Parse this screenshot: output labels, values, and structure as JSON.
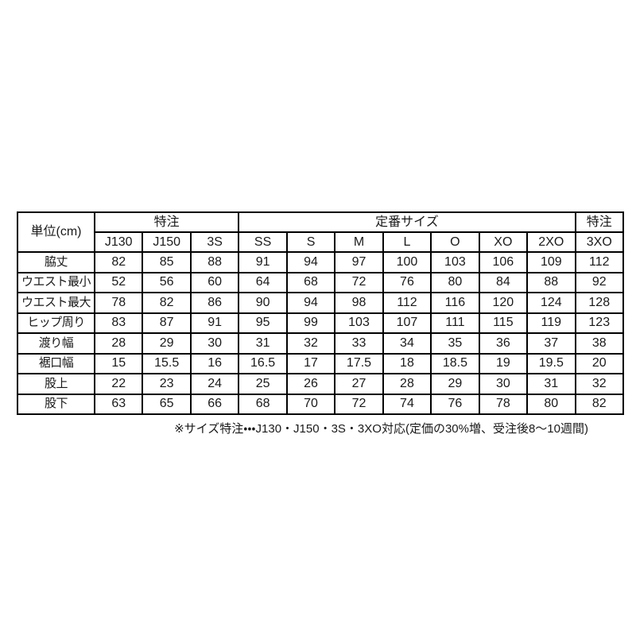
{
  "colors": {
    "background": "#ffffff",
    "border": "#000000",
    "text": "#1a1a1a"
  },
  "table": {
    "unit_header": "単位(cm)",
    "group_headers": [
      {
        "label": "特注",
        "colspan": 3
      },
      {
        "label": "定番サイズ",
        "colspan": 7
      },
      {
        "label": "特注",
        "colspan": 1
      }
    ],
    "size_headers": [
      "J130",
      "J150",
      "3S",
      "SS",
      "S",
      "M",
      "L",
      "O",
      "XO",
      "2XO",
      "3XO"
    ],
    "rows": [
      {
        "label": "脇丈",
        "values": [
          "82",
          "85",
          "88",
          "91",
          "94",
          "97",
          "100",
          "103",
          "106",
          "109",
          "112"
        ]
      },
      {
        "label": "ウエスト最小",
        "values": [
          "52",
          "56",
          "60",
          "64",
          "68",
          "72",
          "76",
          "80",
          "84",
          "88",
          "92"
        ]
      },
      {
        "label": "ウエスト最大",
        "values": [
          "78",
          "82",
          "86",
          "90",
          "94",
          "98",
          "112",
          "116",
          "120",
          "124",
          "128"
        ]
      },
      {
        "label": "ヒップ周り",
        "values": [
          "83",
          "87",
          "91",
          "95",
          "99",
          "103",
          "107",
          "111",
          "115",
          "119",
          "123"
        ]
      },
      {
        "label": "渡り幅",
        "values": [
          "28",
          "29",
          "30",
          "31",
          "32",
          "33",
          "34",
          "35",
          "36",
          "37",
          "38"
        ]
      },
      {
        "label": "裾口幅",
        "values": [
          "15",
          "15.5",
          "16",
          "16.5",
          "17",
          "17.5",
          "18",
          "18.5",
          "19",
          "19.5",
          "20"
        ]
      },
      {
        "label": "股上",
        "values": [
          "22",
          "23",
          "24",
          "25",
          "26",
          "27",
          "28",
          "29",
          "30",
          "31",
          "32"
        ]
      },
      {
        "label": "股下",
        "values": [
          "63",
          "65",
          "66",
          "68",
          "70",
          "72",
          "74",
          "76",
          "78",
          "80",
          "82"
        ]
      }
    ]
  },
  "footnote": "※サイズ特注・・・J130・J150・3S・3XO対応(定価の30%増、受注後8～10週間)"
}
